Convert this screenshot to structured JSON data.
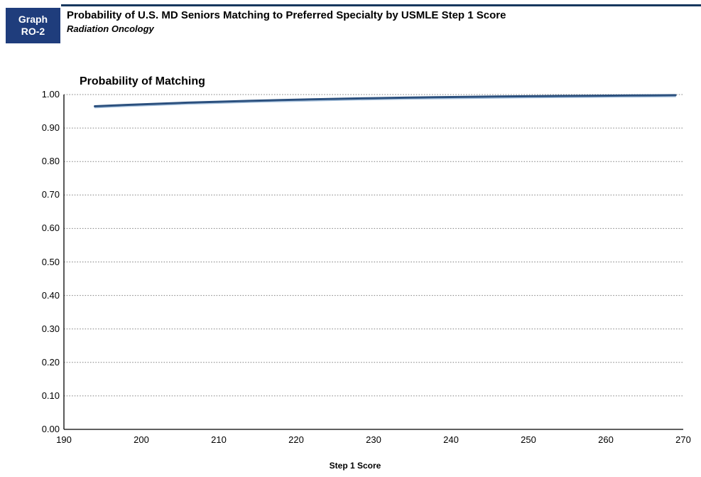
{
  "header": {
    "badge_line1": "Graph",
    "badge_line2": "RO-2",
    "title": "Probability of U.S. MD Seniors Matching to Preferred Specialty by USMLE Step 1 Score",
    "subtitle": "Radiation Oncology"
  },
  "colors": {
    "badge_bg": "#1F3D7C",
    "header_rule": "#17375E",
    "curve": "#2B507E",
    "curve_highlight": "#A9C3DE",
    "gridline": "#7F7F7F",
    "axis": "#000000",
    "text": "#000000"
  },
  "chart_data": {
    "type": "line",
    "title": "Probability of Matching",
    "xlabel": "Step 1 Score",
    "ylabel": "",
    "xlim": [
      190,
      270
    ],
    "ylim": [
      0.0,
      1.0
    ],
    "x_tick_values": [
      190,
      200,
      210,
      220,
      230,
      240,
      250,
      260,
      270
    ],
    "x_tick_labels": [
      "190",
      "200",
      "210",
      "220",
      "230",
      "240",
      "250",
      "260",
      "270"
    ],
    "y_tick_values": [
      0.0,
      0.1,
      0.2,
      0.3,
      0.4,
      0.5,
      0.6,
      0.7,
      0.8,
      0.9,
      1.0
    ],
    "y_tick_labels": [
      "0.00",
      "0.10",
      "0.20",
      "0.30",
      "0.40",
      "0.50",
      "0.60",
      "0.70",
      "0.80",
      "0.90",
      "1.00"
    ],
    "grid": "horizontal-dotted",
    "legend": "none",
    "series": [
      {
        "name": "Probability of Matching",
        "x": [
          194,
          198,
          202,
          206,
          210,
          214,
          218,
          222,
          226,
          230,
          234,
          238,
          242,
          246,
          250,
          254,
          258,
          262,
          266,
          269
        ],
        "y": [
          0.965,
          0.969,
          0.9725,
          0.9757,
          0.9786,
          0.9812,
          0.9835,
          0.9856,
          0.9875,
          0.9891,
          0.9906,
          0.9919,
          0.993,
          0.994,
          0.9949,
          0.9957,
          0.9964,
          0.9971,
          0.9977,
          0.9981
        ]
      }
    ]
  }
}
